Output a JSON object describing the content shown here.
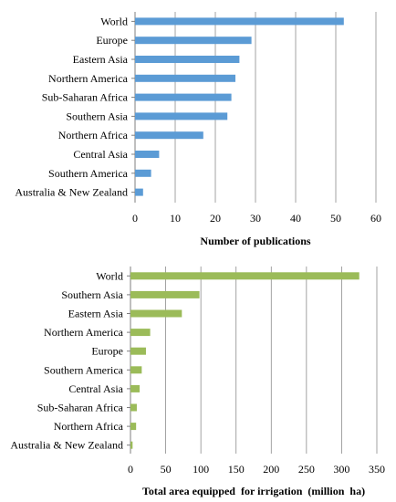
{
  "chart_data": [
    {
      "type": "bar",
      "orientation": "horizontal",
      "categories": [
        "World",
        "Europe",
        "Eastern Asia",
        "Northern America",
        "Sub-Saharan Africa",
        "Southern Asia",
        "Northern Africa",
        "Central Asia",
        "Southern America",
        "Australia & New Zealand"
      ],
      "values": [
        52,
        29,
        26,
        25,
        24,
        23,
        17,
        6,
        4,
        2
      ],
      "xlabel": "Number of publications",
      "xlim": [
        0,
        60
      ],
      "xticks": [
        0,
        10,
        20,
        30,
        40,
        50,
        60
      ],
      "grid": "vertical",
      "color": "#5b9bd5"
    },
    {
      "type": "bar",
      "orientation": "horizontal",
      "categories": [
        "World",
        "Southern Asia",
        "Eastern Asia",
        "Northern America",
        "Europe",
        "Southern America",
        "Central Asia",
        "Sub-Saharan Africa",
        "Northern Africa",
        "Australia & New Zealand"
      ],
      "values": [
        325,
        98,
        73,
        28,
        22,
        16,
        13,
        9,
        8,
        3
      ],
      "xlabel": "Total area equipped  for irrigation  (million  ha)",
      "xlim": [
        0,
        350
      ],
      "xticks": [
        0,
        50,
        100,
        150,
        200,
        250,
        300,
        350
      ],
      "grid": "vertical",
      "color": "#9bbb59"
    }
  ]
}
